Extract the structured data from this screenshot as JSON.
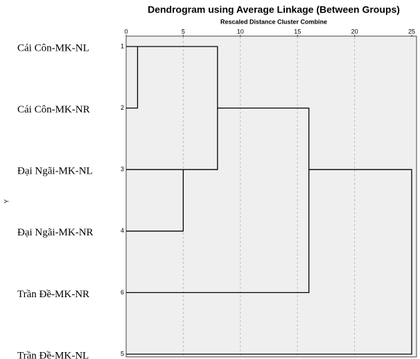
{
  "chart_data": {
    "type": "dendrogram",
    "title": "Dendrogram using Average Linkage (Between Groups)",
    "subtitle": "Rescaled Distance Cluster Combine",
    "y_label": "Y",
    "leaves": [
      {
        "label": "Cái Côn-MK-NL",
        "id": 1
      },
      {
        "label": "Cái Côn-MK-NR",
        "id": 2
      },
      {
        "label": "Đại Ngãi-MK-NL",
        "id": 3
      },
      {
        "label": "Đại Ngãi-MK-NR",
        "id": 4
      },
      {
        "label": "Trần Đề-MK-NR",
        "id": 6
      },
      {
        "label": "Trần Đề-MK-NL",
        "id": 5
      }
    ],
    "merges": [
      {
        "join": [
          0,
          1
        ],
        "distance": 1
      },
      {
        "join": [
          2,
          3
        ],
        "distance": 5
      },
      {
        "join": [
          6,
          7
        ],
        "distance": 8
      },
      {
        "join": [
          8,
          4
        ],
        "distance": 16
      },
      {
        "join": [
          9,
          5
        ],
        "distance": 25
      }
    ],
    "xlim": [
      0,
      25
    ],
    "xticks": [
      0,
      5,
      10,
      15,
      20,
      25
    ],
    "grid": true
  }
}
